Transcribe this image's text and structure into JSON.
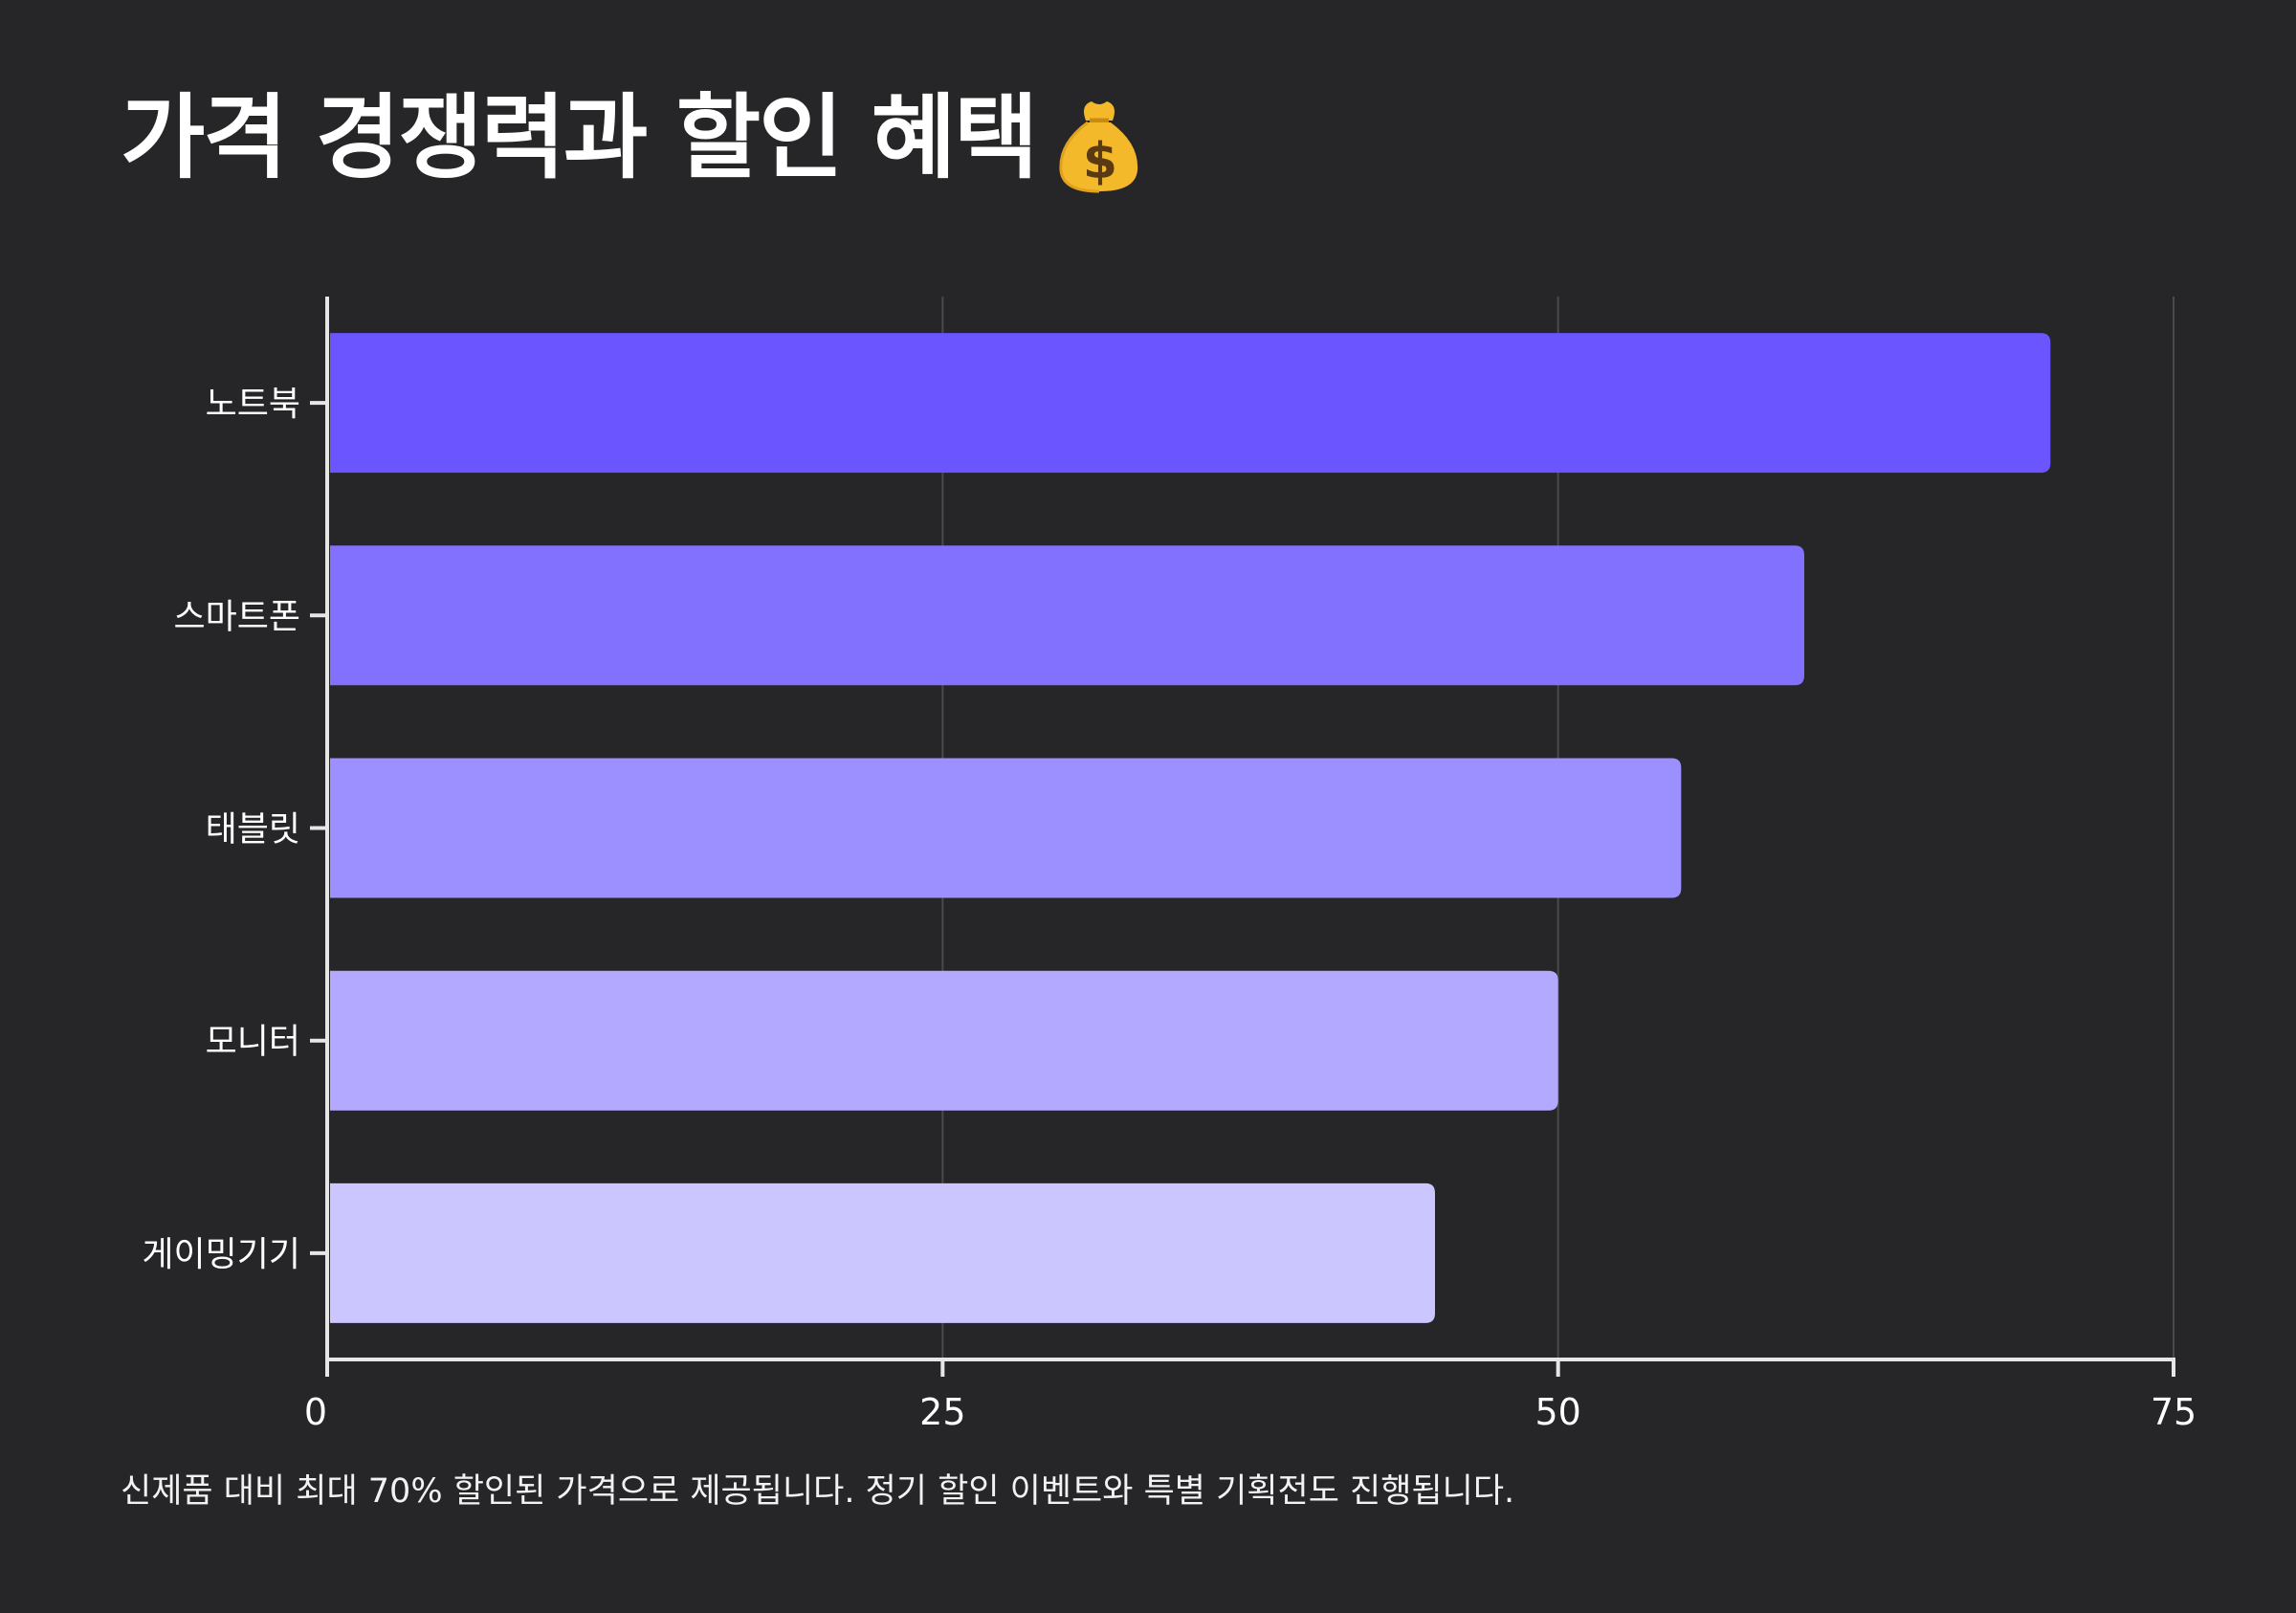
{
  "title": "가격 경쟁력과 할인 혜택",
  "title_icon": "money-bag-icon",
  "note": "신제품 대비 최대 70% 할인된 가격으로 제공됩니다. 정기 할인 이벤트와 특별 기획전도 진행됩니다.",
  "chart_data": {
    "type": "bar",
    "orientation": "horizontal",
    "title": "가격 경쟁력과 할인 혜택",
    "categories": [
      "노트북",
      "스마트폰",
      "태블릿",
      "모니터",
      "게이밍기기"
    ],
    "values": [
      70,
      60,
      55,
      50,
      45
    ],
    "colors": [
      "#6a55ff",
      "#8270ff",
      "#9c8fff",
      "#b3a9ff",
      "#ccc6ff"
    ],
    "xlim": [
      0,
      75
    ],
    "xticks": [
      0,
      25,
      50,
      75
    ],
    "xlabel": "",
    "ylabel": "",
    "grid": "vertical",
    "legend": "none",
    "background": "#262527",
    "axis_color": "#e6e6e6",
    "grid_color": "#4a494c"
  }
}
